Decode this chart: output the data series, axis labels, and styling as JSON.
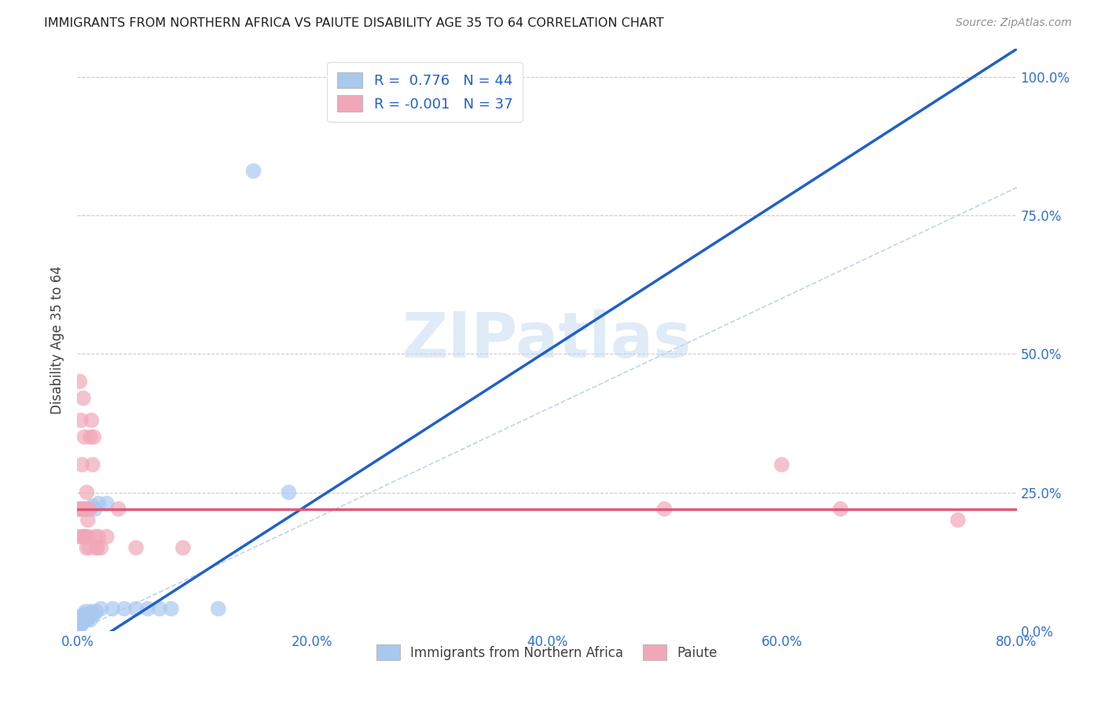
{
  "title": "IMMIGRANTS FROM NORTHERN AFRICA VS PAIUTE DISABILITY AGE 35 TO 64 CORRELATION CHART",
  "source": "Source: ZipAtlas.com",
  "xlim": [
    0.0,
    0.8
  ],
  "ylim": [
    0.0,
    1.05
  ],
  "watermark": "ZIPatlas",
  "legend_blue_r": "0.776",
  "legend_blue_n": "44",
  "legend_pink_r": "-0.001",
  "legend_pink_n": "37",
  "blue_color": "#A8C8F0",
  "pink_color": "#F0A8B8",
  "blue_line_color": "#2060C8",
  "pink_line_color": "#E05878",
  "diagonal_color": "#C0D4E8",
  "title_color": "#202020",
  "source_color": "#909090",
  "axis_tick_color": "#3070D0",
  "ylabel_color": "#404040",
  "blue_line_x": [
    0.0,
    0.8
  ],
  "blue_line_y": [
    -0.04,
    1.05
  ],
  "pink_line_y": 0.22,
  "blue_scatter": [
    [
      0.001,
      0.01
    ],
    [
      0.001,
      0.015
    ],
    [
      0.001,
      0.02
    ],
    [
      0.001,
      0.01
    ],
    [
      0.002,
      0.02
    ],
    [
      0.002,
      0.015
    ],
    [
      0.002,
      0.01
    ],
    [
      0.002,
      0.025
    ],
    [
      0.003,
      0.02
    ],
    [
      0.003,
      0.015
    ],
    [
      0.003,
      0.025
    ],
    [
      0.003,
      0.01
    ],
    [
      0.004,
      0.02
    ],
    [
      0.004,
      0.025
    ],
    [
      0.004,
      0.015
    ],
    [
      0.005,
      0.02
    ],
    [
      0.005,
      0.025
    ],
    [
      0.006,
      0.03
    ],
    [
      0.006,
      0.02
    ],
    [
      0.007,
      0.025
    ],
    [
      0.007,
      0.035
    ],
    [
      0.008,
      0.22
    ],
    [
      0.008,
      0.02
    ],
    [
      0.009,
      0.03
    ],
    [
      0.01,
      0.025
    ],
    [
      0.01,
      0.22
    ],
    [
      0.011,
      0.02
    ],
    [
      0.012,
      0.035
    ],
    [
      0.013,
      0.225
    ],
    [
      0.014,
      0.03
    ],
    [
      0.015,
      0.22
    ],
    [
      0.016,
      0.035
    ],
    [
      0.018,
      0.23
    ],
    [
      0.02,
      0.04
    ],
    [
      0.025,
      0.23
    ],
    [
      0.03,
      0.04
    ],
    [
      0.04,
      0.04
    ],
    [
      0.05,
      0.04
    ],
    [
      0.06,
      0.04
    ],
    [
      0.07,
      0.04
    ],
    [
      0.08,
      0.04
    ],
    [
      0.12,
      0.04
    ],
    [
      0.15,
      0.83
    ],
    [
      0.18,
      0.25
    ]
  ],
  "pink_scatter": [
    [
      0.001,
      0.22
    ],
    [
      0.001,
      0.17
    ],
    [
      0.002,
      0.45
    ],
    [
      0.002,
      0.22
    ],
    [
      0.003,
      0.38
    ],
    [
      0.003,
      0.22
    ],
    [
      0.004,
      0.3
    ],
    [
      0.004,
      0.17
    ],
    [
      0.005,
      0.42
    ],
    [
      0.005,
      0.22
    ],
    [
      0.006,
      0.35
    ],
    [
      0.006,
      0.17
    ],
    [
      0.007,
      0.22
    ],
    [
      0.007,
      0.17
    ],
    [
      0.008,
      0.25
    ],
    [
      0.008,
      0.15
    ],
    [
      0.009,
      0.2
    ],
    [
      0.009,
      0.17
    ],
    [
      0.01,
      0.22
    ],
    [
      0.01,
      0.15
    ],
    [
      0.011,
      0.35
    ],
    [
      0.012,
      0.38
    ],
    [
      0.013,
      0.3
    ],
    [
      0.014,
      0.35
    ],
    [
      0.015,
      0.17
    ],
    [
      0.016,
      0.15
    ],
    [
      0.017,
      0.15
    ],
    [
      0.018,
      0.17
    ],
    [
      0.02,
      0.15
    ],
    [
      0.025,
      0.17
    ],
    [
      0.035,
      0.22
    ],
    [
      0.05,
      0.15
    ],
    [
      0.09,
      0.15
    ],
    [
      0.5,
      0.22
    ],
    [
      0.6,
      0.3
    ],
    [
      0.65,
      0.22
    ],
    [
      0.75,
      0.2
    ]
  ]
}
